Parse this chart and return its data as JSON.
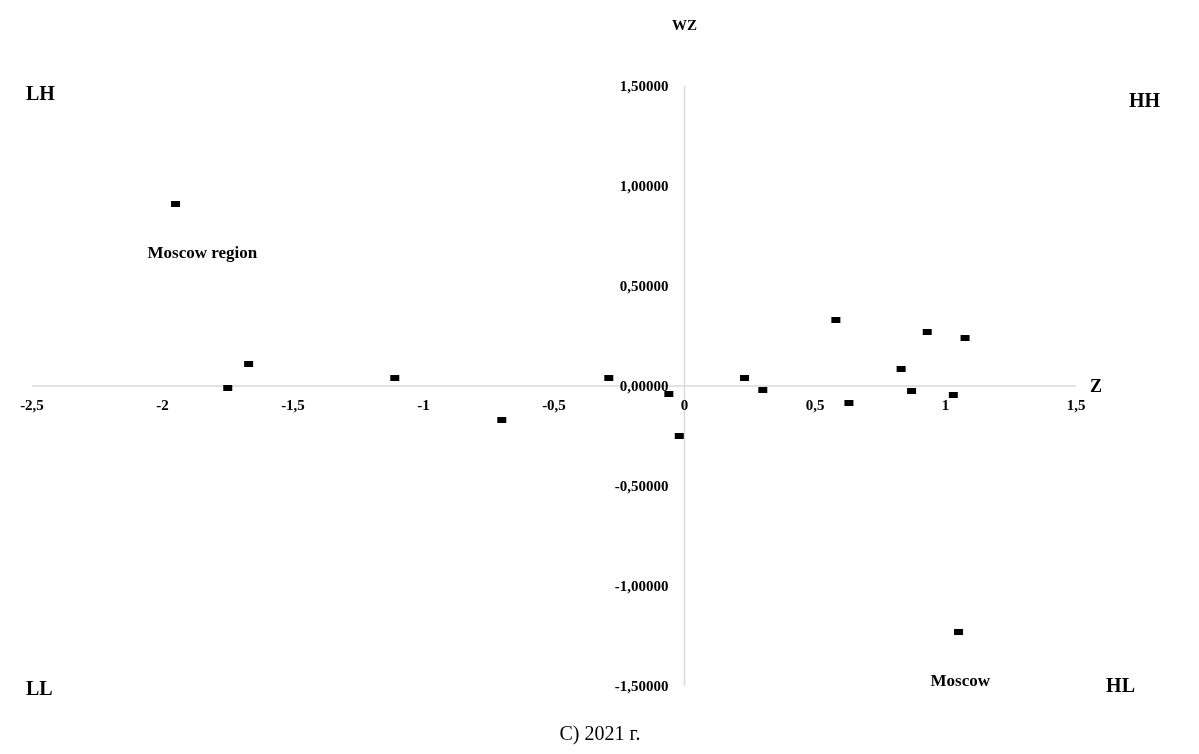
{
  "chart_data": {
    "type": "scatter",
    "xlabel": "Z",
    "ylabel": "WZ",
    "xlim": [
      -2.5,
      1.5
    ],
    "ylim": [
      -1.5,
      1.5
    ],
    "xticks": [
      {
        "value": -2.5,
        "label": "-2,5"
      },
      {
        "value": -2,
        "label": "-2"
      },
      {
        "value": -1.5,
        "label": "-1,5"
      },
      {
        "value": -1,
        "label": "-1"
      },
      {
        "value": -0.5,
        "label": "-0,5"
      },
      {
        "value": 0,
        "label": "0"
      },
      {
        "value": 0.5,
        "label": "0,5"
      },
      {
        "value": 1,
        "label": "1"
      },
      {
        "value": 1.5,
        "label": "1,5"
      }
    ],
    "yticks": [
      {
        "value": -1.5,
        "label": "-1,50000"
      },
      {
        "value": -1,
        "label": "-1,00000"
      },
      {
        "value": -0.5,
        "label": "-0,50000"
      },
      {
        "value": 0,
        "label": "0,00000"
      },
      {
        "value": 0.5,
        "label": "0,50000"
      },
      {
        "value": 1,
        "label": "1,00000"
      },
      {
        "value": 1.5,
        "label": "1,50000"
      }
    ],
    "grid": false,
    "marker": "square",
    "series": [
      {
        "color": "#000000",
        "x": [
          -1.95,
          -1.75,
          -1.67,
          -1.11,
          -0.7,
          -0.29,
          -0.06,
          -0.02,
          0.23,
          0.3,
          0.58,
          0.63,
          0.83,
          0.87,
          0.93,
          1.03,
          1.075,
          1.05
        ],
        "values": [
          0.91,
          -0.01,
          0.11,
          0.04,
          -0.17,
          0.04,
          -0.04,
          -0.25,
          0.04,
          -0.02,
          0.33,
          -0.085,
          0.085,
          -0.025,
          0.27,
          -0.045,
          0.24,
          -1.23
        ]
      }
    ],
    "annotations": [
      "LH",
      "HH",
      "LL",
      "HL",
      "C) 2021 г.",
      {
        "text": "Moscow region",
        "x": -1.95,
        "y": 0.91
      },
      {
        "text": "Moscow",
        "x": 1.05,
        "y": -1.23
      }
    ]
  }
}
